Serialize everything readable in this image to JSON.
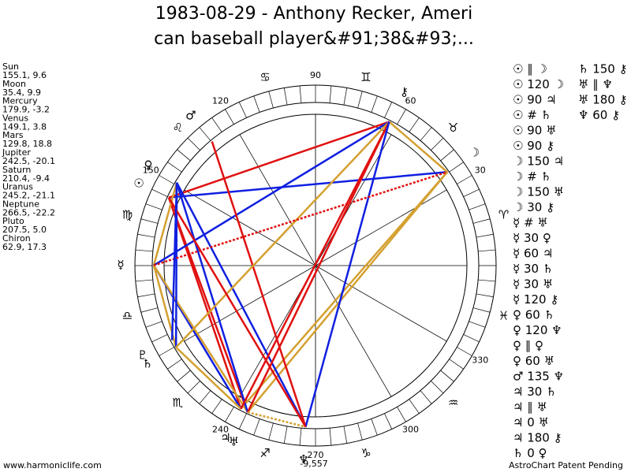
{
  "title": [
    "1983-08-29 - Anthony Recker, Ameri",
    "can baseball player&#91;38&#93;..."
  ],
  "planets": [
    {
      "name": "Sun",
      "position": "155.1, 9.6",
      "glyph": "☉"
    },
    {
      "name": "Moon",
      "position": "35.4, 9.9",
      "glyph": "☽"
    },
    {
      "name": "Mercury",
      "position": "179.9, -3.2",
      "glyph": "☿"
    },
    {
      "name": "Venus",
      "position": "149.1, 3.8",
      "glyph": "♀"
    },
    {
      "name": "Mars",
      "position": "129.8, 18.8",
      "glyph": "♂"
    },
    {
      "name": "Jupiter",
      "position": "242.5, -20.1",
      "glyph": "♃"
    },
    {
      "name": "Saturn",
      "position": "210.4, -9.4",
      "glyph": "♄"
    },
    {
      "name": "Uranus",
      "position": "245.2, -21.1",
      "glyph": "♅"
    },
    {
      "name": "Neptune",
      "position": "266.5, -22.2",
      "glyph": "♆"
    },
    {
      "name": "Pluto",
      "position": "207.5, 5.0",
      "glyph": "♇"
    },
    {
      "name": "Chiron",
      "position": "62.9, 17.3",
      "glyph": "⚷"
    }
  ],
  "signs": [
    "♈",
    "♉",
    "♊",
    "♋",
    "♌",
    "♍",
    "♎",
    "♏",
    "♐",
    "♑",
    "♒",
    "♓"
  ],
  "degree_labels": [
    30,
    60,
    90,
    120,
    150,
    240,
    270,
    300,
    330
  ],
  "bottom_label": "-9,557",
  "aspects": [
    [
      "☉ ∥ ☽",
      "☉ 120 ☽",
      "☉ 90 ♃",
      "☉ # ♄",
      "☉ 90 ♅",
      "☉ 90 ⚷",
      "☽ 150 ♃",
      "☽ # ♄",
      "☽ 150 ♅",
      "☽ 30 ⚷",
      "☿ # ♅",
      "☿ 30 ♀",
      "☿ 60 ♃",
      "☿ 30 ♄",
      "☿ 30 ♅",
      "☿ 120 ⚷",
      "♀ 60 ♄",
      "♀ 120 ♆",
      "♀ ∥ ♀",
      "♀ 60 ♅",
      "♂ 135 ♆",
      "♃ 30 ♄",
      "♃ ∥ ♅",
      "♃ 0 ♅",
      "♃ 180 ⚷",
      "♄ 0 ♀"
    ],
    [
      "♄ 150 ⚷",
      "♅ ∥ ♆",
      "♅ 180 ⚷",
      "♆ 60 ⚷"
    ]
  ],
  "footer_left": "www.harmoniclife.com",
  "footer_right": "AstroChart Patent Pending"
}
